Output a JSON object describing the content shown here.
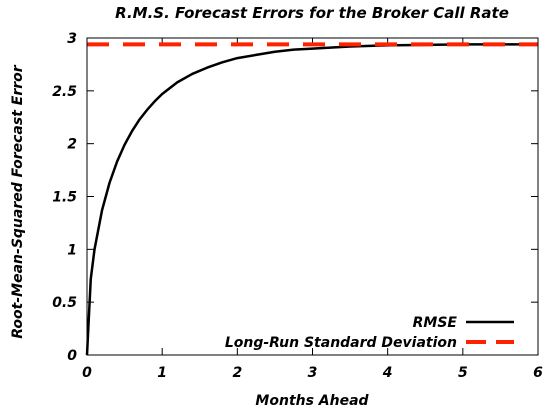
{
  "chart_data": {
    "type": "line",
    "title": "R.M.S. Forecast Errors for the Broker Call Rate",
    "xlabel": "Months Ahead",
    "ylabel": "Root-Mean-Squared Forecast Error",
    "xlim": [
      0,
      6
    ],
    "ylim": [
      0,
      3
    ],
    "xticks": [
      "0",
      "1",
      "2",
      "3",
      "4",
      "5",
      "6"
    ],
    "yticks": [
      "0",
      "0.5",
      "1",
      "1.5",
      "2",
      "2.5",
      "3"
    ],
    "grid": false,
    "legend_position": "bottom-right",
    "series": [
      {
        "name": "RMSE",
        "color": "#000000",
        "style": "solid",
        "x": [
          0,
          0.05,
          0.1,
          0.2,
          0.3,
          0.4,
          0.5,
          0.6,
          0.7,
          0.8,
          0.9,
          1.0,
          1.2,
          1.4,
          1.6,
          1.8,
          2.0,
          2.25,
          2.5,
          2.75,
          3.0,
          3.5,
          4.0,
          4.5,
          5.0,
          5.5,
          6.0
        ],
        "y": [
          0,
          0.72,
          1.0,
          1.37,
          1.63,
          1.83,
          1.99,
          2.12,
          2.23,
          2.32,
          2.4,
          2.47,
          2.58,
          2.66,
          2.72,
          2.77,
          2.81,
          2.84,
          2.87,
          2.89,
          2.9,
          2.92,
          2.93,
          2.935,
          2.94,
          2.94,
          2.94
        ]
      },
      {
        "name": "Long-Run Standard Deviation",
        "color": "#ff2200",
        "style": "dashed",
        "x": [
          0,
          6
        ],
        "y": [
          2.94,
          2.94
        ]
      }
    ]
  }
}
